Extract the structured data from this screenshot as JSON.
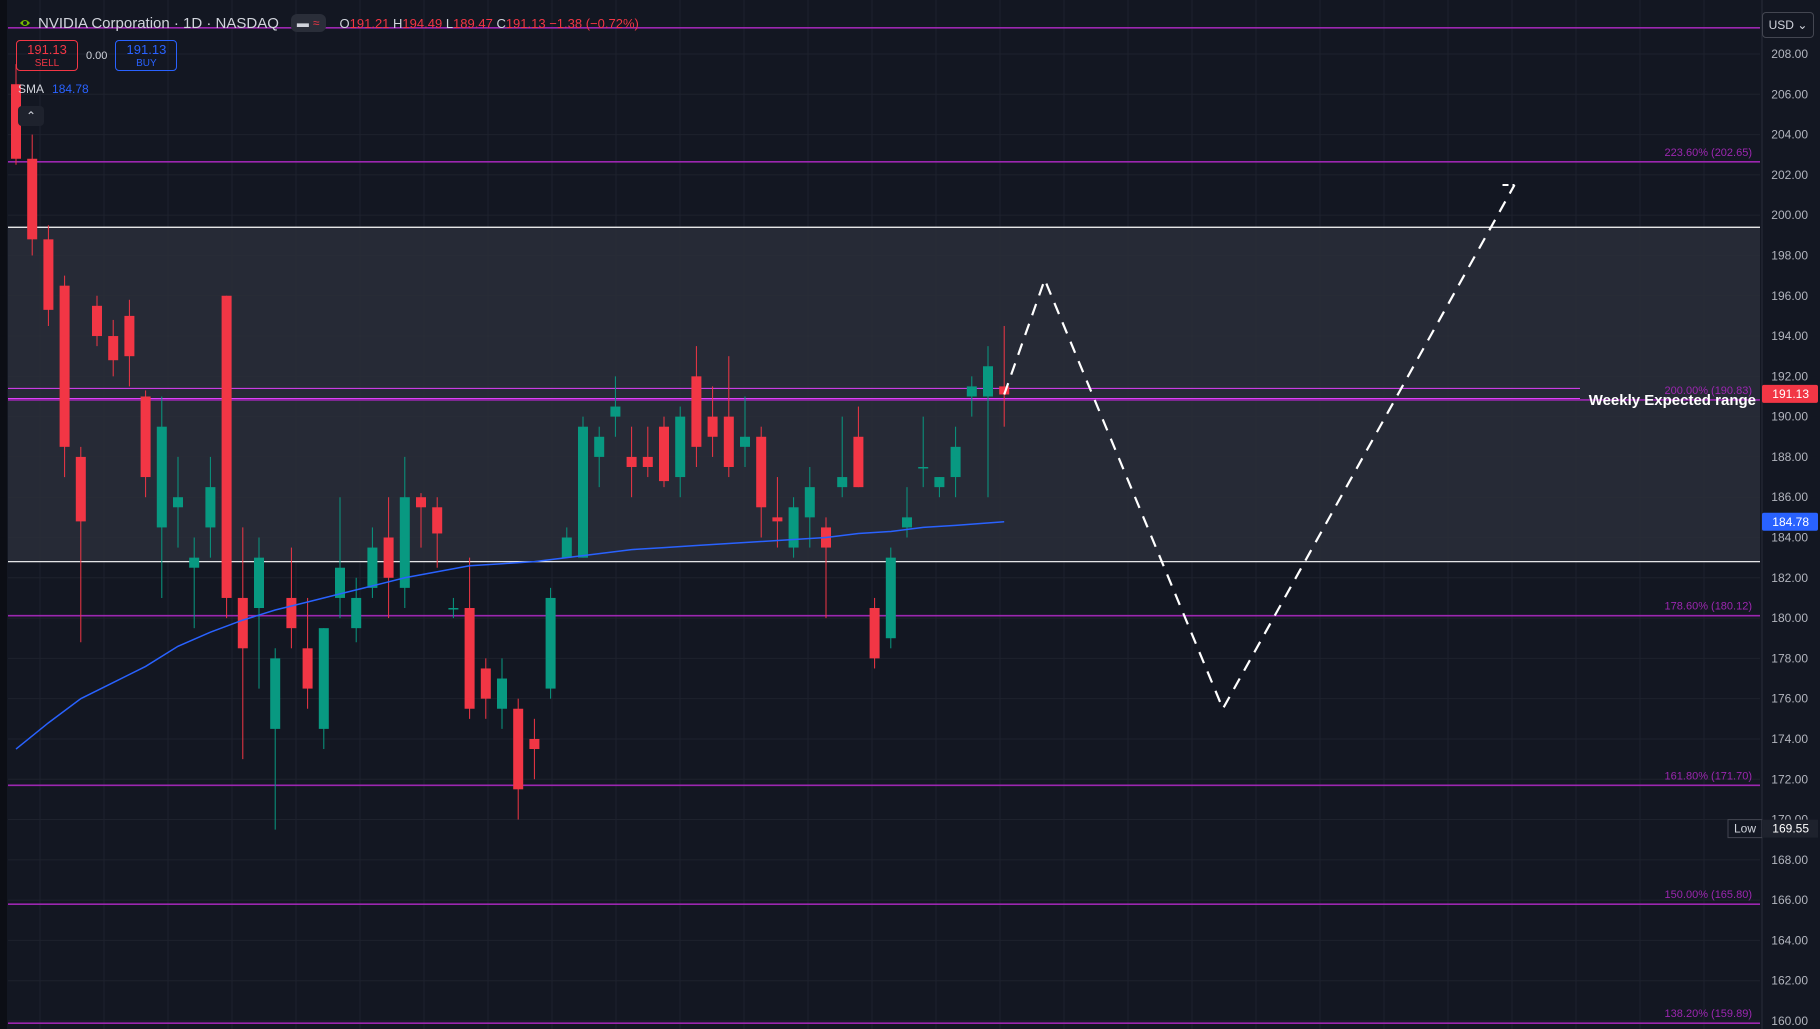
{
  "header": {
    "symbol_title": "NVIDIA Corporation · 1D · NASDAQ",
    "open_label": "O",
    "open": "191.21",
    "high_label": "H",
    "high": "194.49",
    "low_label": "L",
    "low": "189.47",
    "close_label": "C",
    "close": "191.13",
    "change": "−1.38 (−0.72%)"
  },
  "trade_panel": {
    "sell_price": "191.13",
    "sell_label": "SELL",
    "spread": "0.00",
    "buy_price": "191.13",
    "buy_label": "BUY"
  },
  "indicator": {
    "name": "SMA",
    "value": "184.78"
  },
  "currency": "USD",
  "colors": {
    "background": "#131722",
    "up": "#089981",
    "down": "#f23645",
    "sma": "#2962ff",
    "fib": "#9c27b0",
    "box_line": "#ffffff",
    "projection": "#ffffff"
  },
  "chart_data": {
    "type": "candlestick",
    "ylim": [
      159.5,
      209.5
    ],
    "yticks": [
      "160.00",
      "162.00",
      "164.00",
      "166.00",
      "168.00",
      "170.00",
      "172.00",
      "174.00",
      "176.00",
      "178.00",
      "180.00",
      "182.00",
      "184.00",
      "186.00",
      "188.00",
      "190.00",
      "192.00",
      "194.00",
      "196.00",
      "198.00",
      "200.00",
      "202.00",
      "204.00",
      "206.00",
      "208.00"
    ],
    "candles": [
      [
        206.5,
        207.5,
        202.5,
        202.8
      ],
      [
        202.8,
        204.0,
        198.0,
        198.8
      ],
      [
        198.8,
        199.5,
        194.5,
        195.3
      ],
      [
        196.5,
        197.0,
        187.0,
        188.5
      ],
      [
        188.0,
        188.5,
        178.8,
        184.8
      ],
      [
        195.5,
        196.0,
        193.5,
        194.0
      ],
      [
        194.0,
        194.8,
        192.0,
        192.8
      ],
      [
        195.0,
        195.8,
        191.5,
        193.0
      ],
      [
        191.0,
        191.3,
        186.0,
        187.0
      ],
      [
        184.5,
        191.0,
        181.0,
        189.5
      ],
      [
        185.5,
        188.0,
        183.5,
        186.0
      ],
      [
        182.5,
        184.0,
        179.5,
        183.0
      ],
      [
        184.5,
        188.0,
        183.0,
        186.5
      ],
      [
        196.0,
        196.0,
        180.0,
        181.0
      ],
      [
        181.0,
        184.5,
        173.0,
        178.5
      ],
      [
        180.5,
        184.0,
        176.5,
        183.0
      ],
      [
        174.5,
        178.5,
        169.5,
        178.0
      ],
      [
        181.0,
        183.5,
        178.5,
        179.5
      ],
      [
        178.5,
        181.0,
        175.5,
        176.5
      ],
      [
        174.5,
        179.5,
        173.5,
        179.5
      ],
      [
        181.0,
        186.0,
        180.0,
        182.5
      ],
      [
        179.5,
        182.0,
        178.8,
        181.0
      ],
      [
        181.5,
        184.5,
        181.0,
        183.5
      ],
      [
        184.0,
        186.0,
        180.0,
        182.0
      ],
      [
        181.5,
        188.0,
        180.5,
        186.0
      ],
      [
        186.0,
        186.2,
        183.5,
        185.5
      ],
      [
        185.5,
        186.0,
        182.5,
        184.2
      ],
      [
        180.5,
        181.0,
        180.0,
        180.5
      ],
      [
        180.5,
        183.0,
        175.0,
        175.5
      ],
      [
        177.5,
        178.0,
        175.0,
        176.0
      ],
      [
        175.5,
        178.0,
        174.5,
        177.0
      ],
      [
        175.5,
        176.0,
        170.0,
        171.5
      ],
      [
        174.0,
        175.0,
        172.0,
        173.5
      ],
      [
        176.5,
        181.5,
        176.0,
        181.0
      ],
      [
        183.0,
        184.5,
        183.0,
        184.0
      ],
      [
        183.0,
        190.0,
        183.0,
        189.5
      ],
      [
        188.0,
        189.5,
        186.5,
        189.0
      ],
      [
        190.0,
        192.0,
        189.0,
        190.5
      ],
      [
        188.0,
        189.5,
        186.0,
        187.5
      ],
      [
        188.0,
        189.5,
        187.0,
        187.5
      ],
      [
        189.5,
        190.0,
        186.5,
        186.8
      ],
      [
        187.0,
        190.5,
        186.0,
        190.0
      ],
      [
        192.0,
        193.5,
        187.5,
        188.5
      ],
      [
        190.0,
        191.5,
        188.0,
        189.0
      ],
      [
        190.0,
        193.0,
        187.0,
        187.5
      ],
      [
        188.5,
        191.0,
        187.5,
        189.0
      ],
      [
        189.0,
        189.5,
        184.0,
        185.5
      ],
      [
        185.0,
        187.0,
        183.5,
        184.8
      ],
      [
        183.5,
        186.0,
        183.0,
        185.5
      ],
      [
        185.0,
        187.5,
        183.5,
        186.5
      ],
      [
        184.5,
        185.0,
        180.0,
        183.5
      ],
      [
        186.5,
        190.0,
        186.0,
        187.0
      ],
      [
        189.0,
        190.5,
        186.5,
        186.5
      ],
      [
        180.5,
        181.0,
        177.5,
        178.0
      ],
      [
        179.0,
        183.5,
        178.5,
        183.0
      ],
      [
        184.5,
        186.5,
        184.0,
        185.0
      ],
      [
        187.5,
        190.0,
        186.5,
        187.5
      ],
      [
        186.5,
        187.0,
        186.0,
        187.0
      ],
      [
        187.0,
        189.5,
        186.0,
        188.5
      ],
      [
        191.0,
        192.0,
        190.0,
        191.5
      ],
      [
        191.0,
        193.5,
        186.0,
        192.5
      ],
      [
        191.5,
        194.5,
        189.5,
        191.1
      ]
    ],
    "sma": [
      [
        0,
        173.5
      ],
      [
        2,
        174.8
      ],
      [
        4,
        176.0
      ],
      [
        6,
        176.8
      ],
      [
        8,
        177.6
      ],
      [
        10,
        178.6
      ],
      [
        12,
        179.3
      ],
      [
        14,
        179.9
      ],
      [
        16,
        180.4
      ],
      [
        18,
        180.8
      ],
      [
        20,
        181.2
      ],
      [
        22,
        181.6
      ],
      [
        24,
        182.0
      ],
      [
        26,
        182.3
      ],
      [
        28,
        182.6
      ],
      [
        30,
        182.7
      ],
      [
        32,
        182.8
      ],
      [
        34,
        183.0
      ],
      [
        36,
        183.2
      ],
      [
        38,
        183.4
      ],
      [
        40,
        183.5
      ],
      [
        42,
        183.6
      ],
      [
        44,
        183.7
      ],
      [
        46,
        183.8
      ],
      [
        48,
        183.9
      ],
      [
        50,
        184.0
      ],
      [
        52,
        184.2
      ],
      [
        54,
        184.3
      ],
      [
        56,
        184.5
      ],
      [
        58,
        184.6
      ],
      [
        61,
        184.78
      ]
    ],
    "box": {
      "top": 199.4,
      "bottom": 182.8
    },
    "weekly_range_lines": [
      190.9,
      191.4
    ],
    "fib_levels": [
      {
        "value": 209.3,
        "label": ""
      },
      {
        "value": 202.65,
        "label": "223.60% (202.65)"
      },
      {
        "value": 190.83,
        "label": "200.00% (190.83)"
      },
      {
        "value": 180.12,
        "label": "178.60% (180.12)"
      },
      {
        "value": 171.7,
        "label": "161.80% (171.70)"
      },
      {
        "value": 165.8,
        "label": "150.00% (165.80)"
      },
      {
        "value": 159.89,
        "label": "138.20% (159.89)"
      }
    ],
    "projection": [
      {
        "date_index": 61,
        "price": 191.1
      },
      {
        "date_index": 63.5,
        "price": 196.8
      },
      {
        "date_index": 74.5,
        "price": 175.5
      },
      {
        "date_index": 92.5,
        "price": 201.5
      }
    ],
    "annotation": "Weekly Expected range",
    "price_labels": {
      "last": "191.13",
      "sma": "184.78",
      "low_tag": "Low",
      "low": "169.55"
    }
  }
}
